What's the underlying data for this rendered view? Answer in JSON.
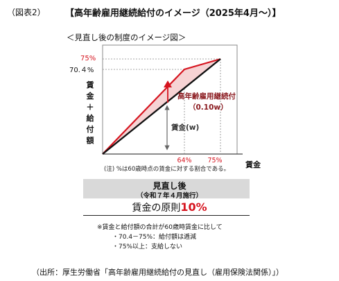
{
  "header": {
    "figure_label": "（図表2）",
    "title": "【高年齢雇用継続給付のイメージ（2025年4月～）】"
  },
  "diagram": {
    "subtitle": "＜見直し後の制度のイメージ図＞",
    "y_axis_label": [
      "賃",
      "金",
      "＋",
      "給",
      "付",
      "額"
    ],
    "x_axis_label": "賃金",
    "y_tick_75": "75%",
    "y_tick_704": "70.４%",
    "x_tick_64": "64%",
    "x_tick_75": "75%",
    "benefit_label": "高年齢雇用継続付",
    "benefit_rate": "（0.10w）",
    "wage_label": "賃金(w)",
    "note": "(注) %は60歳時点の賃金に対する割合である。",
    "colors": {
      "benefit": "#d6141f",
      "wage": "#111111",
      "fill": "#f6d3d4",
      "axis": "#555555"
    }
  },
  "box": {
    "heading": "見直し後",
    "heading_sub": "（令和７年４月施行）",
    "principle_prefix": "賃金の原則",
    "principle_value": "10%",
    "notes": [
      "※賃金と給付額の合計が60歳時賃金に比して",
      "・70.4－75%：給付額は逓減",
      "・75%以上：支給しない"
    ]
  },
  "footer": {
    "source": "（出所：厚生労働省「高年齢雇用継続給付の見直し（雇用保険法関係）」）"
  }
}
